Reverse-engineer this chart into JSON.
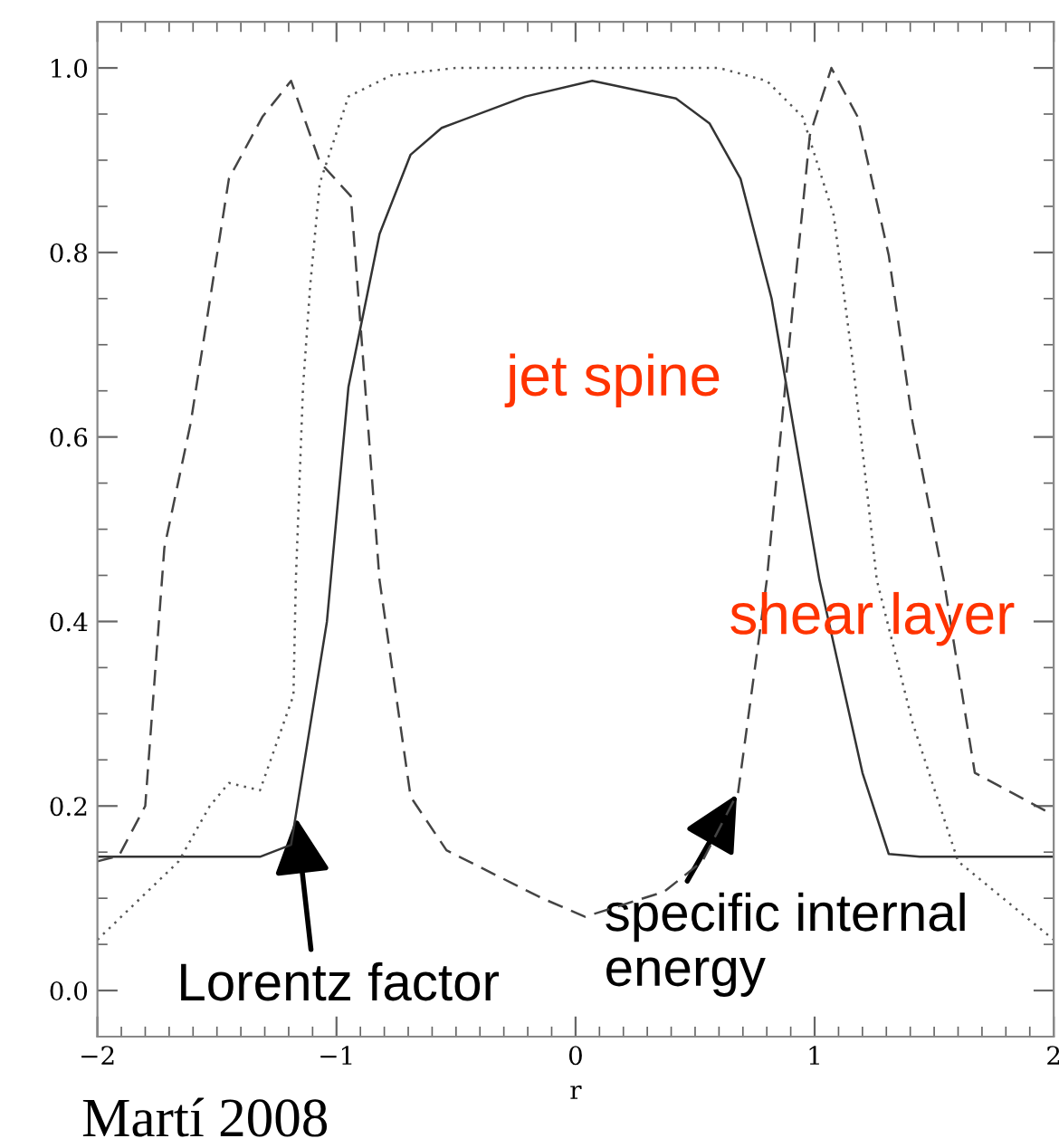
{
  "chart_data": {
    "type": "line",
    "xlabel": "r",
    "xlim": [
      -2,
      2
    ],
    "ylim": [
      -0.05,
      1.05
    ],
    "xticks": [
      -2,
      -1,
      0,
      1,
      2
    ],
    "yticks": [
      {
        "value": 0,
        "label": "0.0"
      },
      {
        "value": 0.2,
        "label": "0.2"
      },
      {
        "value": 0.4,
        "label": "0.4"
      },
      {
        "value": 0.6,
        "label": "0.6"
      },
      {
        "value": 0.8,
        "label": "0.8"
      },
      {
        "value": 1,
        "label": "1.0"
      }
    ],
    "grid": false,
    "legend": false,
    "marker": "none",
    "series": [
      {
        "color": "#333333",
        "line_style": "solid",
        "x": [
          -2,
          -1.32,
          -1.19,
          -1.04,
          -0.95,
          -0.82,
          -0.69,
          -0.56,
          -0.21,
          0.07,
          0.42,
          0.56,
          0.69,
          0.82,
          1.02,
          1.2,
          1.31,
          1.44,
          2
        ],
        "values": [
          0.145,
          0.145,
          0.158,
          0.4,
          0.654,
          0.82,
          0.906,
          0.935,
          0.969,
          0.986,
          0.967,
          0.94,
          0.88,
          0.75,
          0.445,
          0.236,
          0.148,
          0.145,
          0.145
        ]
      },
      {
        "color": "#555555",
        "line_style": "dotted",
        "x": [
          -2,
          -1.66,
          -1.53,
          -1.45,
          -1.32,
          -1.18,
          -1.17,
          -1.14,
          -1.11,
          -1.07,
          -0.95,
          -0.77,
          -0.5,
          0.6,
          0.8,
          0.95,
          1.08,
          1.16,
          1.26,
          1.41,
          1.6,
          2
        ],
        "values": [
          0.055,
          0.14,
          0.2,
          0.225,
          0.217,
          0.32,
          0.445,
          0.654,
          0.764,
          0.875,
          0.969,
          0.992,
          1.0,
          1.0,
          0.986,
          0.947,
          0.84,
          0.68,
          0.445,
          0.29,
          0.14,
          0.055
        ]
      },
      {
        "color": "#444444",
        "line_style": "dashed",
        "x": [
          -2,
          -1.91,
          -1.8,
          -1.72,
          -1.61,
          -1.45,
          -1.31,
          -1.19,
          -1.07,
          -0.94,
          -0.88,
          -0.82,
          -0.69,
          -0.54,
          -0.14,
          0.04,
          0.37,
          0.53,
          0.68,
          0.8,
          0.91,
          0.98,
          1.07,
          1.18,
          1.31,
          1.41,
          1.54,
          1.67,
          2
        ],
        "values": [
          0.14,
          0.146,
          0.2,
          0.48,
          0.615,
          0.88,
          0.947,
          0.986,
          0.898,
          0.861,
          0.654,
          0.445,
          0.21,
          0.152,
          0.1,
          0.08,
          0.107,
          0.14,
          0.215,
          0.445,
          0.745,
          0.927,
          1.0,
          0.947,
          0.797,
          0.615,
          0.445,
          0.236,
          0.19
        ]
      }
    ],
    "annotations": [
      "jet spine",
      "shear layer",
      {
        "text": "Lorentz factor",
        "x": -1.17,
        "y": 0.19
      },
      {
        "text": "specific internal\nenergy",
        "x": 0.68,
        "y": 0.215
      },
      "Martí 2008"
    ]
  }
}
